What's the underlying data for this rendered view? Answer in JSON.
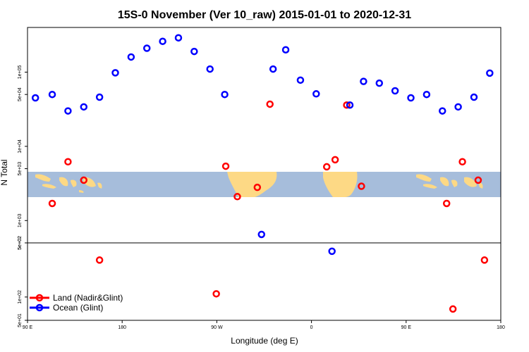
{
  "chart_data": {
    "type": "scatter",
    "title": "15S-0 November (Ver 10_raw)   2015-01-01 to 2020-12-31",
    "xlabel": "Longitude (deg E)",
    "ylabel": "N Total",
    "x_ticks": [
      {
        "value": 90,
        "label": "90 E"
      },
      {
        "value": 180,
        "label": "180"
      },
      {
        "value": 270,
        "label": "90 W"
      },
      {
        "value": 360,
        "label": "0"
      },
      {
        "value": 450,
        "label": "90 E"
      },
      {
        "value": 540,
        "label": "180"
      }
    ],
    "xlim": [
      90,
      540
    ],
    "y_panels": [
      {
        "name": "upper",
        "scale": "log",
        "ylim": [
          500,
          400000
        ],
        "ticks": [
          {
            "value": 500,
            "label": "5e+02"
          },
          {
            "value": 1000,
            "label": "1e+03"
          },
          {
            "value": 5000,
            "label": "5e+03"
          },
          {
            "value": 10000,
            "label": "1e+04"
          },
          {
            "value": 50000,
            "label": "5e+04"
          },
          {
            "value": 100000,
            "label": "1e+05"
          }
        ]
      },
      {
        "name": "lower",
        "scale": "log",
        "ylim": [
          50,
          500
        ],
        "ticks": [
          {
            "value": 50,
            "label": "5e+01"
          },
          {
            "value": 100,
            "label": "1e+02"
          },
          {
            "value": 500,
            "label": "5e+02"
          }
        ]
      }
    ],
    "grid": false,
    "legend_position": "bottom-left",
    "background_map": "world-land-ocean band",
    "colors": {
      "ocean": "#a6bddb",
      "land": "#fdd985"
    },
    "series": [
      {
        "name": "Land (Nadir&Glint)",
        "color": "#ff0000",
        "points": [
          {
            "x": 113.5,
            "y": 1700
          },
          {
            "x": 128.5,
            "y": 6200
          },
          {
            "x": 143.5,
            "y": 3500
          },
          {
            "x": 158.5,
            "y": 300
          },
          {
            "x": 269.5,
            "y": 110
          },
          {
            "x": 278.5,
            "y": 5400
          },
          {
            "x": 289.5,
            "y": 2100
          },
          {
            "x": 308.5,
            "y": 2800
          },
          {
            "x": 320.5,
            "y": 37000
          },
          {
            "x": 374.5,
            "y": 5300
          },
          {
            "x": 382.5,
            "y": 6600
          },
          {
            "x": 393.5,
            "y": 36000
          },
          {
            "x": 407.5,
            "y": 2900
          },
          {
            "x": 494.5,
            "y": 70
          },
          {
            "x": 524.5,
            "y": 300
          },
          {
            "x": 488.5,
            "y": 1700
          },
          {
            "x": 503.5,
            "y": 6200
          },
          {
            "x": 518.5,
            "y": 3500
          }
        ]
      },
      {
        "name": "Ocean (Glint)",
        "color": "#0000ff",
        "points": [
          {
            "x": 97.5,
            "y": 45000
          },
          {
            "x": 113.5,
            "y": 50000
          },
          {
            "x": 128.5,
            "y": 30000
          },
          {
            "x": 143.5,
            "y": 34000
          },
          {
            "x": 158.5,
            "y": 46000
          },
          {
            "x": 173.5,
            "y": 98000
          },
          {
            "x": 188.5,
            "y": 160000
          },
          {
            "x": 203.5,
            "y": 210000
          },
          {
            "x": 218.5,
            "y": 260000
          },
          {
            "x": 233.5,
            "y": 290000
          },
          {
            "x": 248.5,
            "y": 190000
          },
          {
            "x": 263.5,
            "y": 110000
          },
          {
            "x": 277.5,
            "y": 50000
          },
          {
            "x": 312.5,
            "y": 650
          },
          {
            "x": 323.5,
            "y": 110000
          },
          {
            "x": 335.5,
            "y": 200000
          },
          {
            "x": 349.5,
            "y": 78000
          },
          {
            "x": 364.5,
            "y": 51000
          },
          {
            "x": 379.5,
            "y": 390
          },
          {
            "x": 396.5,
            "y": 36000
          },
          {
            "x": 409.5,
            "y": 75000
          },
          {
            "x": 424.5,
            "y": 71000
          },
          {
            "x": 439.5,
            "y": 56000
          },
          {
            "x": 454.5,
            "y": 45000
          },
          {
            "x": 469.5,
            "y": 50000
          },
          {
            "x": 484.5,
            "y": 30000
          },
          {
            "x": 499.5,
            "y": 34000
          },
          {
            "x": 514.5,
            "y": 46000
          },
          {
            "x": 529.5,
            "y": 97000
          }
        ]
      }
    ]
  }
}
